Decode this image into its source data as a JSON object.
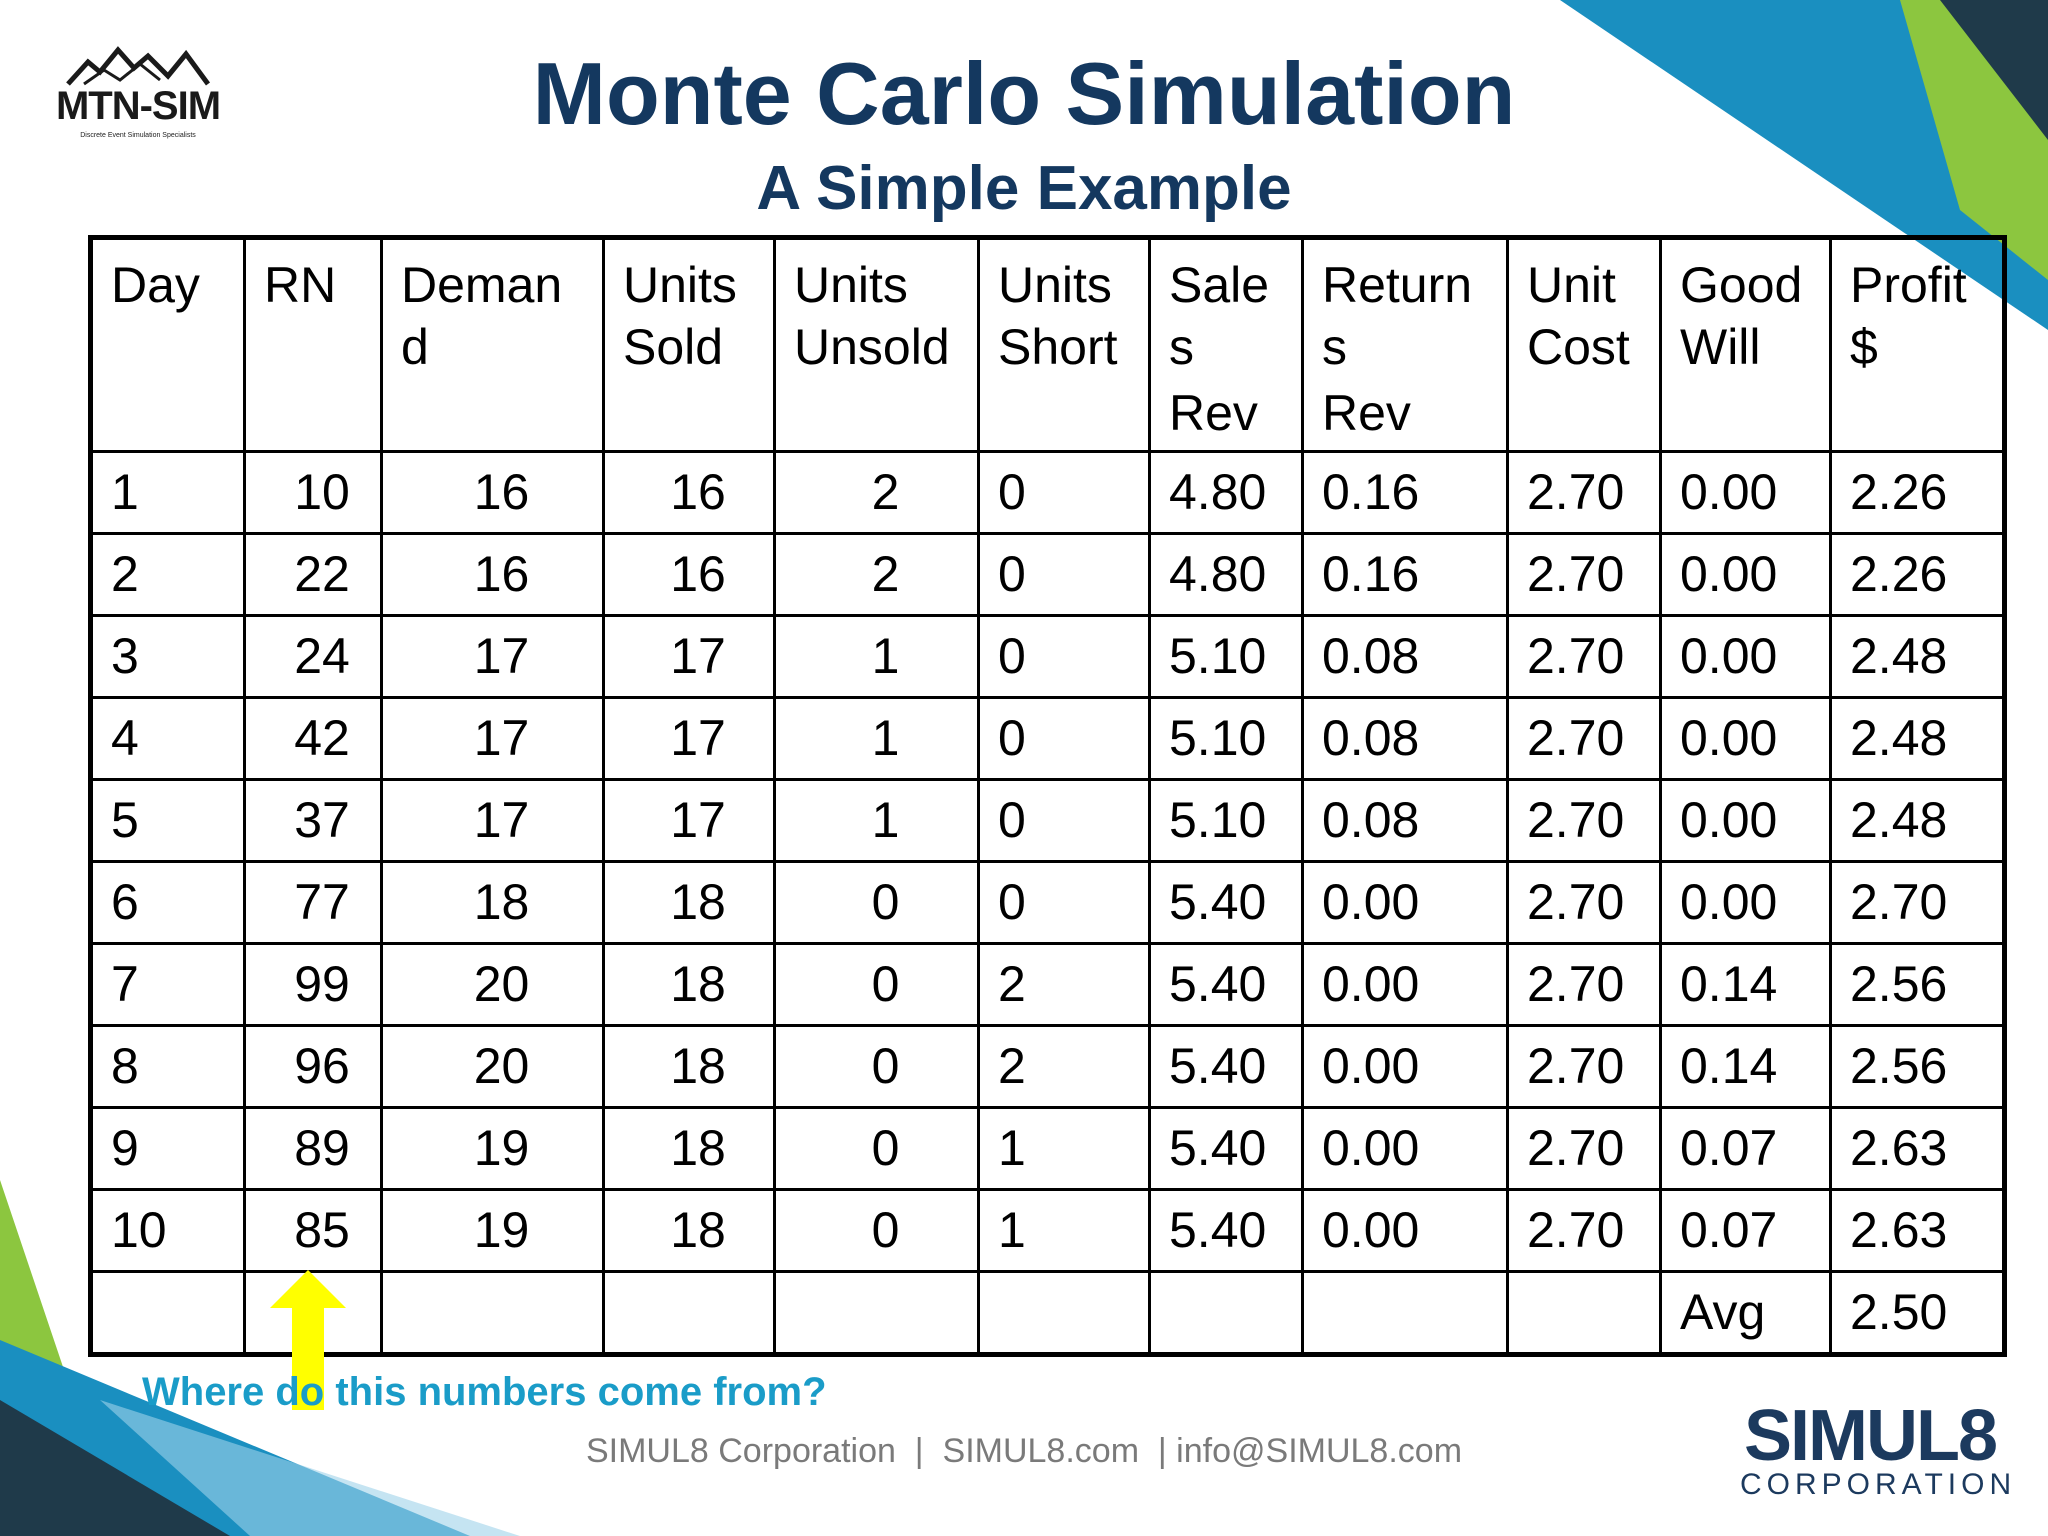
{
  "slide": {
    "title": "Monte Carlo Simulation",
    "subtitle": "A Simple Example",
    "question": "Where do this numbers come from?",
    "contact": "SIMUL8 Corporation  |  SIMUL8.com  | info@SIMUL8.com"
  },
  "logos": {
    "left_text": "MTN-SIM",
    "left_tagline": "Discrete Event Simulation Specialists",
    "right_brand": "SIMUL8",
    "right_sub": "CORPORATION"
  },
  "colors": {
    "title": "#14385f",
    "question": "#1a9cc8",
    "arrow": "#ffff00",
    "deco_teal": "#1a8fc0",
    "deco_green": "#8cc63f",
    "deco_dark": "#1f3a4a"
  },
  "table": {
    "headers": [
      [
        "Day"
      ],
      [
        "RN"
      ],
      [
        "Deman",
        "d"
      ],
      [
        "Units",
        "Sold"
      ],
      [
        "Units",
        "Unsold"
      ],
      [
        "Units",
        "Short"
      ],
      [
        "Sale",
        "s",
        "Rev"
      ],
      [
        "Return",
        "s",
        "Rev"
      ],
      [
        "Unit",
        "Cost"
      ],
      [
        "Good",
        "Will"
      ],
      [
        "Profit",
        "$"
      ]
    ],
    "rows": [
      [
        "1",
        "10",
        "16",
        "16",
        "2",
        "0",
        "4.80",
        "0.16",
        "2.70",
        "0.00",
        "2.26"
      ],
      [
        "2",
        "22",
        "16",
        "16",
        "2",
        "0",
        "4.80",
        "0.16",
        "2.70",
        "0.00",
        "2.26"
      ],
      [
        "3",
        "24",
        "17",
        "17",
        "1",
        "0",
        "5.10",
        "0.08",
        "2.70",
        "0.00",
        "2.48"
      ],
      [
        "4",
        "42",
        "17",
        "17",
        "1",
        "0",
        "5.10",
        "0.08",
        "2.70",
        "0.00",
        "2.48"
      ],
      [
        "5",
        "37",
        "17",
        "17",
        "1",
        "0",
        "5.10",
        "0.08",
        "2.70",
        "0.00",
        "2.48"
      ],
      [
        "6",
        "77",
        "18",
        "18",
        "0",
        "0",
        "5.40",
        "0.00",
        "2.70",
        "0.00",
        "2.70"
      ],
      [
        "7",
        "99",
        "20",
        "18",
        "0",
        "2",
        "5.40",
        "0.00",
        "2.70",
        "0.14",
        "2.56"
      ],
      [
        "8",
        "96",
        "20",
        "18",
        "0",
        "2",
        "5.40",
        "0.00",
        "2.70",
        "0.14",
        "2.56"
      ],
      [
        "9",
        "89",
        "19",
        "18",
        "0",
        "1",
        "5.40",
        "0.00",
        "2.70",
        "0.07",
        "2.63"
      ],
      [
        "10",
        "85",
        "19",
        "18",
        "0",
        "1",
        "5.40",
        "0.00",
        "2.70",
        "0.07",
        "2.63"
      ],
      [
        "",
        "",
        "",
        "",
        "",
        "",
        "",
        "",
        "",
        "Avg",
        "2.50"
      ]
    ]
  }
}
